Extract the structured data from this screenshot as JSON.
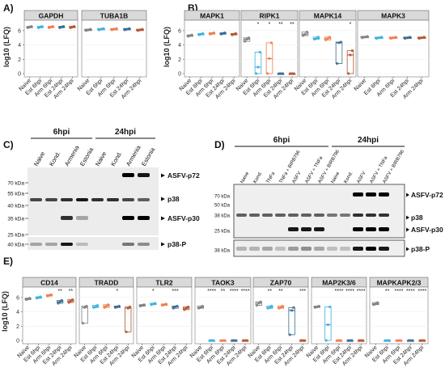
{
  "panel_letters": [
    "A)",
    "B)",
    "C)",
    "D)",
    "E)"
  ],
  "y_axis_label": "log10 (LFQ)",
  "y_ticks": [
    "0",
    "2",
    "4",
    "6"
  ],
  "x_groups": [
    "Naive",
    "Est 6hpi",
    "Arm 6hpi",
    "Est 24hpi",
    "Arm 24hpi"
  ],
  "group_colors": {
    "Naive": "#7f7f7f",
    "Est 6hpi": "#3ab0df",
    "Arm 6hpi": "#ef7d4a",
    "Est 24hpi": "#3a6b8e",
    "Arm 24hpi": "#b5532e"
  },
  "chart_data": [
    {
      "type": "scatter",
      "panel": "A)",
      "facet": "GAPDH",
      "categories": [
        "Naive",
        "Est 6hpi",
        "Arm 6hpi",
        "Est 24hpi",
        "Arm 24hpi"
      ],
      "median": [
        6.5,
        6.5,
        6.5,
        6.5,
        6.5
      ],
      "q1": [
        6.4,
        6.4,
        6.4,
        6.4,
        6.4
      ],
      "q3": [
        6.6,
        6.6,
        6.6,
        6.6,
        6.6
      ],
      "stars": [
        "",
        "",
        "",
        "",
        ""
      ],
      "ylim": [
        0,
        7
      ]
    },
    {
      "type": "scatter",
      "panel": "A)",
      "facet": "TUBA1B",
      "categories": [
        "Naive",
        "Est 6hpi",
        "Arm 6hpi",
        "Est 24hpi",
        "Arm 24hpi"
      ],
      "median": [
        6.1,
        6.2,
        6.2,
        6.2,
        6.1
      ],
      "q1": [
        6.0,
        6.1,
        6.1,
        6.1,
        6.0
      ],
      "q3": [
        6.2,
        6.3,
        6.3,
        6.3,
        6.2
      ],
      "stars": [
        "",
        "",
        "",
        "",
        ""
      ],
      "ylim": [
        0,
        7
      ]
    },
    {
      "type": "scatter",
      "panel": "B)",
      "facet": "MAPK1",
      "categories": [
        "Naive",
        "Est 6hpi",
        "Arm 6hpi",
        "Est 24hpi",
        "Arm 24hpi"
      ],
      "median": [
        5.3,
        5.5,
        5.6,
        5.6,
        5.5
      ],
      "q1": [
        5.2,
        5.4,
        5.5,
        5.5,
        5.4
      ],
      "q3": [
        5.4,
        5.6,
        5.7,
        5.7,
        5.6
      ],
      "stars": [
        "",
        "",
        "",
        "",
        ""
      ],
      "ylim": [
        0,
        7
      ]
    },
    {
      "type": "box",
      "panel": "B)",
      "facet": "RIPK1",
      "categories": [
        "Naive",
        "Est 6hpi",
        "Arm 6hpi",
        "Est 24hpi",
        "Arm 24hpi"
      ],
      "median": [
        4.8,
        0.9,
        2.1,
        0,
        0
      ],
      "q1": [
        4.5,
        0,
        0,
        0,
        0
      ],
      "q3": [
        5.0,
        3.0,
        4.3,
        0,
        0
      ],
      "stars": [
        "",
        "*",
        "*",
        "**",
        "**"
      ],
      "ylim": [
        0,
        7
      ]
    },
    {
      "type": "box",
      "panel": "B)",
      "facet": "MAPK14",
      "categories": [
        "Naive",
        "Est 6hpi",
        "Arm 6hpi",
        "Est 24hpi",
        "Arm 24hpi"
      ],
      "median": [
        5.5,
        4.9,
        4.9,
        4.3,
        2.6
      ],
      "q1": [
        5.3,
        4.8,
        4.7,
        1.4,
        0
      ],
      "q3": [
        5.8,
        5.1,
        5.1,
        4.4,
        3.2
      ],
      "stars": [
        "",
        "",
        "",
        "",
        "*"
      ],
      "ylim": [
        0,
        7
      ]
    },
    {
      "type": "scatter",
      "panel": "B)",
      "facet": "MAPK3",
      "categories": [
        "Naive",
        "Est 6hpi",
        "Arm 6hpi",
        "Est 24hpi",
        "Arm 24hpi"
      ],
      "median": [
        5.1,
        5.0,
        5.0,
        5.0,
        5.0
      ],
      "q1": [
        5.0,
        4.9,
        4.9,
        4.9,
        4.9
      ],
      "q3": [
        5.2,
        5.1,
        5.1,
        5.1,
        5.1
      ],
      "stars": [
        "",
        "",
        "",
        "",
        ""
      ],
      "ylim": [
        0,
        7
      ]
    },
    {
      "type": "scatter",
      "panel": "E)",
      "facet": "CD14",
      "categories": [
        "Naive",
        "Est 6hpi",
        "Arm 6hpi",
        "Est 24hpi",
        "Arm 24hpi"
      ],
      "median": [
        5.8,
        6.0,
        6.3,
        5.4,
        5.5
      ],
      "q1": [
        5.7,
        5.9,
        6.2,
        5.2,
        5.3
      ],
      "q3": [
        5.9,
        6.1,
        6.4,
        5.6,
        5.7
      ],
      "stars": [
        "",
        "",
        "",
        "**",
        "**"
      ],
      "ylim": [
        0,
        7
      ]
    },
    {
      "type": "box",
      "panel": "E)",
      "facet": "TRADD",
      "categories": [
        "Naive",
        "Est 6hpi",
        "Arm 6hpi",
        "Est 24hpi",
        "Arm 24hpi"
      ],
      "median": [
        4.6,
        4.7,
        4.8,
        4.7,
        4.5
      ],
      "q1": [
        2.4,
        4.6,
        4.6,
        4.6,
        1.2
      ],
      "q3": [
        4.8,
        4.9,
        5.0,
        4.8,
        4.7
      ],
      "stars": [
        "",
        "",
        "",
        "*",
        ""
      ],
      "ylim": [
        0,
        7
      ]
    },
    {
      "type": "scatter",
      "panel": "E)",
      "facet": "TLR2",
      "categories": [
        "Naive",
        "Est 6hpi",
        "Arm 6hpi",
        "Est 24hpi",
        "Arm 24hpi"
      ],
      "median": [
        4.9,
        5.1,
        5.0,
        4.7,
        4.5
      ],
      "q1": [
        4.8,
        5.0,
        4.9,
        4.5,
        4.3
      ],
      "q3": [
        5.0,
        5.2,
        5.1,
        4.8,
        4.7
      ],
      "stars": [
        "",
        "*",
        "",
        "***",
        ""
      ],
      "ylim": [
        0,
        7
      ]
    },
    {
      "type": "scatter",
      "panel": "E)",
      "facet": "TAOK3",
      "categories": [
        "Naive",
        "Est 6hpi",
        "Arm 6hpi",
        "Est 24hpi",
        "Arm 24hpi"
      ],
      "median": [
        4.6,
        0,
        0,
        0,
        0
      ],
      "q1": [
        4.5,
        0,
        0,
        0,
        0
      ],
      "q3": [
        4.8,
        0,
        0,
        0,
        0
      ],
      "stars": [
        "",
        "****",
        "**",
        "****",
        "****"
      ],
      "ylim": [
        0,
        7
      ]
    },
    {
      "type": "box",
      "panel": "E)",
      "facet": "ZAP70",
      "categories": [
        "Naive",
        "Est 6hpi",
        "Arm 6hpi",
        "Est 24hpi",
        "Arm 24hpi"
      ],
      "median": [
        5.2,
        4.6,
        4.6,
        4.2,
        0
      ],
      "q1": [
        4.9,
        4.5,
        4.5,
        0.8,
        0
      ],
      "q3": [
        5.4,
        4.8,
        4.8,
        4.6,
        0
      ],
      "stars": [
        "",
        "**",
        "**",
        "",
        "***"
      ],
      "ylim": [
        0,
        7
      ]
    },
    {
      "type": "box",
      "panel": "E)",
      "facet": "MAP2K3/6",
      "categories": [
        "Naive",
        "Est 6hpi",
        "Arm 6hpi",
        "Est 24hpi",
        "Arm 24hpi"
      ],
      "median": [
        4.7,
        2.2,
        0,
        0,
        0
      ],
      "q1": [
        4.6,
        0,
        0,
        0,
        0
      ],
      "q3": [
        4.8,
        4.7,
        0,
        0,
        0
      ],
      "stars": [
        "",
        "",
        "****",
        "****",
        "****"
      ],
      "ylim": [
        0,
        7
      ]
    },
    {
      "type": "scatter",
      "panel": "E)",
      "facet": "MAPKAPK2/3",
      "categories": [
        "Naive",
        "Est 6hpi",
        "Arm 6hpi",
        "Est 24hpi",
        "Arm 24hpi"
      ],
      "median": [
        5.1,
        0,
        0,
        0,
        0
      ],
      "q1": [
        5.0,
        0,
        0,
        0,
        0
      ],
      "q3": [
        5.3,
        0,
        0,
        0,
        0
      ],
      "stars": [
        "",
        "**",
        "****",
        "****",
        "****"
      ],
      "ylim": [
        0,
        7
      ]
    }
  ],
  "blot_c": {
    "timepoints": [
      "6hpi",
      "24hpi"
    ],
    "lanes": [
      "Naive",
      "Kond.",
      "Armenia",
      "Estonia",
      "Naive",
      "Kond.",
      "Armenia",
      "Estonia"
    ],
    "markers": [
      "70 kDa",
      "55 kDa",
      "40 kDa",
      "35 kDa",
      "25 kDa",
      "40 kDa"
    ],
    "bands": [
      "ASFV-p72",
      "p38",
      "ASFV-p30",
      "p38-P"
    ]
  },
  "blot_d": {
    "timepoints": [
      "6hpi",
      "24hpi"
    ],
    "lanes": [
      "Naive",
      "Kond.",
      "TNFa",
      "TNFa + BIRB796",
      "ASFV",
      "ASFV + TNFa",
      "ASFV + BIRB796",
      "Naive",
      "Kond.",
      "ASFV",
      "ASFV + TNFa",
      "ASFV + BIRB796"
    ],
    "markers": [
      "70 kDa",
      "50 kDa",
      "38 kDa",
      "25 kDa",
      "38 kDa"
    ],
    "bands": [
      "ASFV-p72",
      "p38",
      "ASFV-p30",
      "p38-P"
    ]
  }
}
